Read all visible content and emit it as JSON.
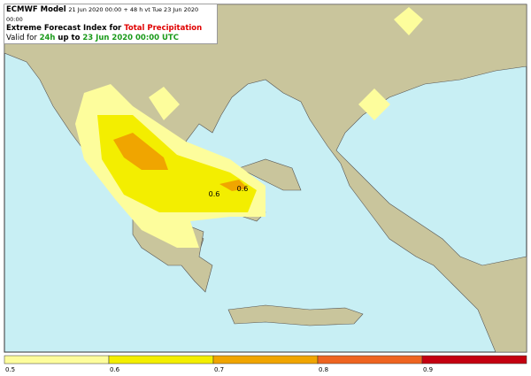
{
  "header": {
    "model": "ECMWF Model",
    "run": "21 Jun 2020 00:00 + 48 h vt Tue 23 Jun 2020 00:00",
    "line2_prefix": "Extreme Forecast Index for ",
    "line2_param": "Total Precipitation",
    "line3_prefix": "Valid for ",
    "line3_period": "24h",
    "line3_mid": " up to ",
    "line3_date": "23 Jun 2020 00:00 UTC"
  },
  "map": {
    "contour_labels": [
      0.6,
      0.6
    ]
  },
  "colorbar": {
    "ticks": [
      0.5,
      0.6,
      0.7,
      0.8,
      0.9
    ],
    "colors": [
      "#fdfd9c",
      "#f3ee00",
      "#f0a500",
      "#ee6420",
      "#c40010"
    ]
  }
}
